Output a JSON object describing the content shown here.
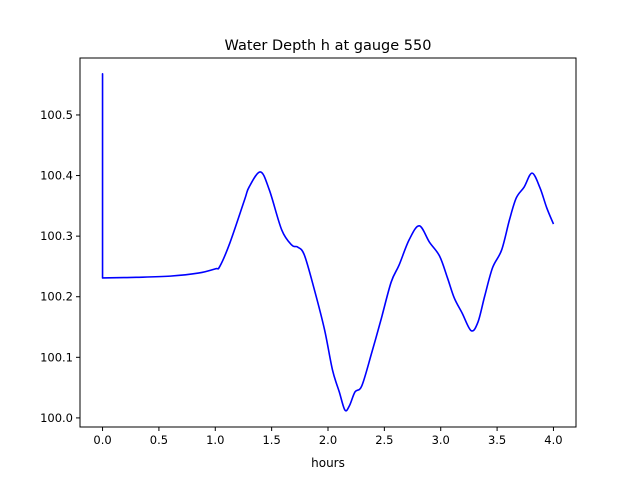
{
  "chart_data": {
    "type": "line",
    "title": "Water Depth h at gauge 550",
    "xlabel": "hours",
    "ylabel": "",
    "xlim": [
      -0.2,
      4.2
    ],
    "ylim": [
      99.985,
      100.594
    ],
    "xticks": [
      0.0,
      0.5,
      1.0,
      1.5,
      2.0,
      2.5,
      3.0,
      3.5,
      4.0
    ],
    "xtick_labels": [
      "0.0",
      "0.5",
      "1.0",
      "1.5",
      "2.0",
      "2.5",
      "3.0",
      "3.5",
      "4.0"
    ],
    "yticks": [
      100.0,
      100.1,
      100.2,
      100.3,
      100.4,
      100.5
    ],
    "ytick_labels": [
      "100.0",
      "100.1",
      "100.2",
      "100.3",
      "100.4",
      "100.5"
    ],
    "grid": false,
    "series": [
      {
        "name": "h",
        "color": "#0000ff",
        "x": [
          0.0,
          0.0,
          0.0,
          0.3,
          0.6,
          0.85,
          1.0,
          1.04,
          1.13,
          1.26,
          1.3,
          1.4,
          1.48,
          1.59,
          1.68,
          1.73,
          1.79,
          1.88,
          1.97,
          2.04,
          2.1,
          2.15,
          2.19,
          2.24,
          2.3,
          2.39,
          2.47,
          2.56,
          2.63,
          2.72,
          2.81,
          2.9,
          2.99,
          3.06,
          3.12,
          3.19,
          3.27,
          3.33,
          3.39,
          3.46,
          3.54,
          3.61,
          3.67,
          3.74,
          3.81,
          3.88,
          3.94,
          4.0
        ],
        "y": [
          100.231,
          100.568,
          100.231,
          100.232,
          100.234,
          100.239,
          100.246,
          100.25,
          100.289,
          100.36,
          100.381,
          100.406,
          100.376,
          100.31,
          100.285,
          100.282,
          100.269,
          100.211,
          100.145,
          100.079,
          100.043,
          100.013,
          100.02,
          100.043,
          100.053,
          100.109,
          100.162,
          100.224,
          100.252,
          100.294,
          100.317,
          100.29,
          100.267,
          100.231,
          100.198,
          100.173,
          100.144,
          100.158,
          100.201,
          100.248,
          100.277,
          100.327,
          100.363,
          100.381,
          100.404,
          100.38,
          100.347,
          100.32
        ]
      }
    ]
  }
}
